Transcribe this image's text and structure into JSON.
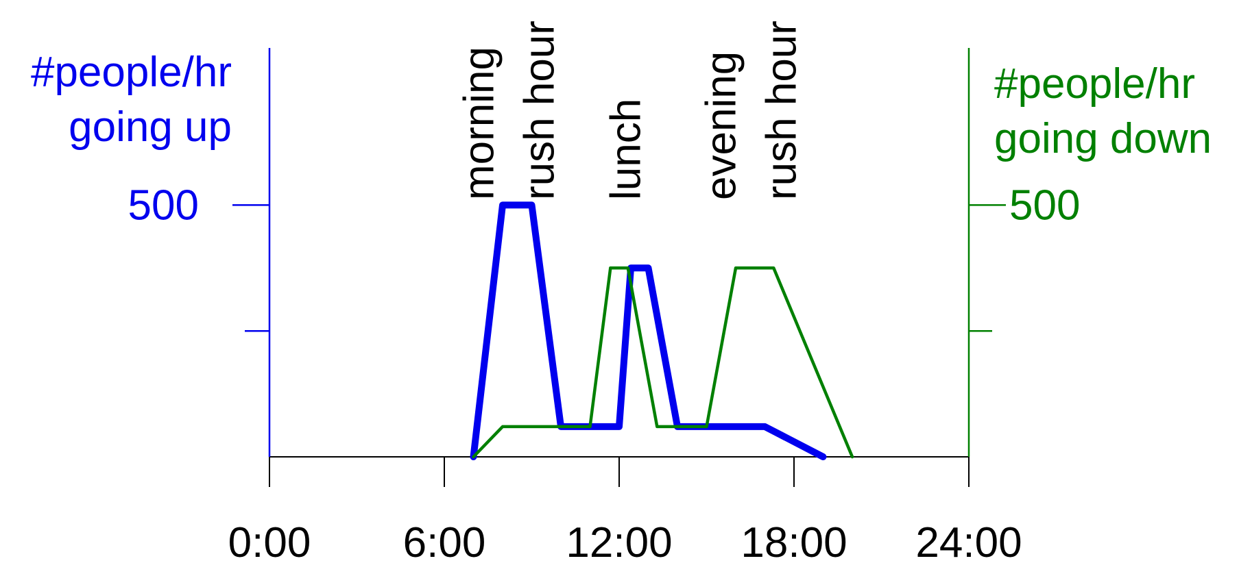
{
  "chart_data": {
    "type": "line",
    "x_ticks": [
      "0:00",
      "6:00",
      "12:00",
      "18:00",
      "24:00"
    ],
    "x_range": [
      0,
      24
    ],
    "left_axis": {
      "label_lines": [
        "#people/hr",
        "going up"
      ],
      "tick_labels": [
        {
          "value": 500,
          "text": "500"
        }
      ],
      "minor_ticks": [
        250,
        500
      ],
      "range": [
        0,
        880
      ],
      "color": "#0000ee"
    },
    "right_axis": {
      "label_lines": [
        "#people/hr",
        "going down"
      ],
      "tick_labels": [
        {
          "value": 500,
          "text": "500"
        }
      ],
      "minor_ticks": [
        250,
        500
      ],
      "range": [
        0,
        880
      ],
      "color": "#008000"
    },
    "annotations": [
      {
        "x": 8.2,
        "lines": [
          "morning",
          "rush hour"
        ]
      },
      {
        "x": 12.2,
        "lines": [
          "lunch"
        ]
      },
      {
        "x": 16.5,
        "lines": [
          "evening",
          "rush hour"
        ]
      }
    ],
    "series": [
      {
        "axis": "left",
        "color": "#0000ee",
        "points": [
          [
            7,
            0
          ],
          [
            8,
            500
          ],
          [
            9,
            500
          ],
          [
            10,
            60
          ],
          [
            12,
            60
          ],
          [
            12.4,
            375
          ],
          [
            13,
            375
          ],
          [
            14,
            60
          ],
          [
            17,
            60
          ],
          [
            19,
            0
          ]
        ]
      },
      {
        "axis": "right",
        "color": "#008000",
        "points": [
          [
            7,
            0
          ],
          [
            8,
            60
          ],
          [
            11,
            60
          ],
          [
            11.7,
            375
          ],
          [
            12.3,
            375
          ],
          [
            13.3,
            60
          ],
          [
            15,
            60
          ],
          [
            16,
            375
          ],
          [
            17.3,
            375
          ],
          [
            20,
            0
          ]
        ]
      }
    ]
  }
}
